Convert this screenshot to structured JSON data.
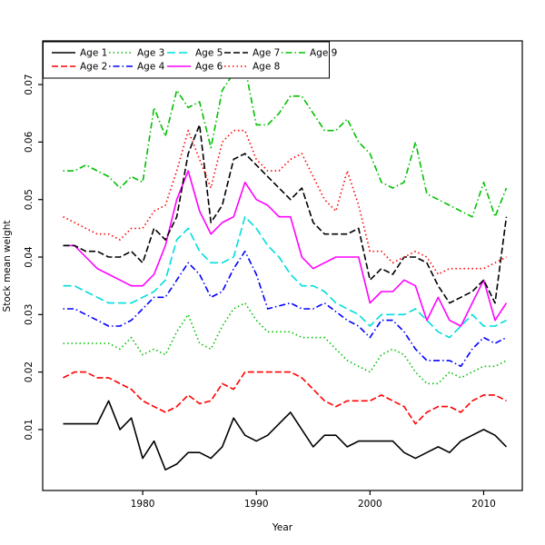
{
  "figure": {
    "title": "",
    "xlabel": "Year",
    "ylabel": "Stock mean weight"
  },
  "chart_data": {
    "type": "line",
    "title": "",
    "xlabel": "Year",
    "ylabel": "Stock mean weight",
    "x": [
      1973,
      1974,
      1975,
      1976,
      1977,
      1978,
      1979,
      1980,
      1981,
      1982,
      1983,
      1984,
      1985,
      1986,
      1987,
      1988,
      1989,
      1990,
      1991,
      1992,
      1993,
      1994,
      1995,
      1996,
      1997,
      1998,
      1999,
      2000,
      2001,
      2002,
      2003,
      2004,
      2005,
      2006,
      2007,
      2008,
      2009,
      2010,
      2011,
      2012
    ],
    "x_ticks": [
      1980,
      1990,
      2000,
      2010
    ],
    "y_ticks": [
      0.01,
      0.02,
      0.03,
      0.04,
      0.05,
      0.06,
      0.07
    ],
    "xlim": [
      1971.2,
      2013.4
    ],
    "ylim": [
      -0.0006,
      0.0776
    ],
    "grid": false,
    "legend_position": "top-left",
    "legend_columns": 5,
    "series": [
      {
        "name": "Age 1",
        "color": "#000000",
        "linestyle": "solid",
        "values": [
          0.011,
          0.011,
          0.011,
          0.011,
          0.015,
          0.01,
          0.012,
          0.005,
          0.008,
          0.003,
          0.004,
          0.006,
          0.006,
          0.005,
          0.007,
          0.012,
          0.009,
          0.008,
          0.009,
          0.011,
          0.013,
          0.01,
          0.007,
          0.009,
          0.009,
          0.007,
          0.008,
          0.008,
          0.008,
          0.008,
          0.006,
          0.005,
          0.006,
          0.007,
          0.006,
          0.008,
          0.009,
          0.01,
          0.009,
          0.007
        ]
      },
      {
        "name": "Age 2",
        "color": "#ff0000",
        "linestyle": "dashed",
        "values": [
          0.019,
          0.02,
          0.02,
          0.019,
          0.019,
          0.018,
          0.017,
          0.015,
          0.014,
          0.013,
          0.014,
          0.016,
          0.0145,
          0.015,
          0.018,
          0.017,
          0.02,
          0.02,
          0.02,
          0.02,
          0.02,
          0.019,
          0.017,
          0.015,
          0.014,
          0.015,
          0.015,
          0.015,
          0.016,
          0.015,
          0.014,
          0.011,
          0.013,
          0.014,
          0.014,
          0.013,
          0.015,
          0.016,
          0.016,
          0.015
        ]
      },
      {
        "name": "Age 3",
        "color": "#00c000",
        "linestyle": "dotted",
        "values": [
          0.025,
          0.025,
          0.025,
          0.025,
          0.025,
          0.024,
          0.026,
          0.023,
          0.024,
          0.023,
          0.027,
          0.03,
          0.025,
          0.024,
          0.028,
          0.031,
          0.032,
          0.029,
          0.027,
          0.027,
          0.027,
          0.026,
          0.026,
          0.026,
          0.024,
          0.022,
          0.021,
          0.02,
          0.023,
          0.024,
          0.023,
          0.02,
          0.018,
          0.018,
          0.02,
          0.019,
          0.02,
          0.021,
          0.021,
          0.022
        ]
      },
      {
        "name": "Age 4",
        "color": "#0000ff",
        "linestyle": "dashdot",
        "values": [
          0.031,
          0.031,
          0.03,
          0.029,
          0.028,
          0.028,
          0.029,
          0.031,
          0.033,
          0.033,
          0.036,
          0.039,
          0.037,
          0.033,
          0.034,
          0.038,
          0.041,
          0.037,
          0.031,
          0.0315,
          0.032,
          0.031,
          0.031,
          0.032,
          0.0305,
          0.029,
          0.028,
          0.026,
          0.029,
          0.029,
          0.027,
          0.024,
          0.022,
          0.022,
          0.022,
          0.021,
          0.024,
          0.026,
          0.025,
          0.026
        ]
      },
      {
        "name": "Age 5",
        "color": "#00dddd",
        "linestyle": "longdash",
        "values": [
          0.035,
          0.035,
          0.034,
          0.033,
          0.032,
          0.032,
          0.032,
          0.033,
          0.034,
          0.036,
          0.043,
          0.045,
          0.041,
          0.039,
          0.039,
          0.04,
          0.047,
          0.045,
          0.042,
          0.04,
          0.037,
          0.035,
          0.035,
          0.034,
          0.032,
          0.031,
          0.03,
          0.028,
          0.03,
          0.03,
          0.03,
          0.031,
          0.029,
          0.027,
          0.026,
          0.028,
          0.03,
          0.028,
          0.028,
          0.029
        ]
      },
      {
        "name": "Age 6",
        "color": "#ff00ff",
        "linestyle": "solid",
        "values": [
          0.042,
          0.042,
          0.04,
          0.038,
          0.037,
          0.036,
          0.035,
          0.035,
          0.037,
          0.042,
          0.05,
          0.055,
          0.048,
          0.044,
          0.046,
          0.047,
          0.053,
          0.05,
          0.049,
          0.047,
          0.047,
          0.04,
          0.038,
          0.039,
          0.04,
          0.04,
          0.04,
          0.032,
          0.034,
          0.034,
          0.036,
          0.035,
          0.029,
          0.033,
          0.029,
          0.028,
          0.032,
          0.036,
          0.029,
          0.032
        ]
      },
      {
        "name": "Age 7",
        "color": "#000000",
        "linestyle": "dashed",
        "values": [
          0.042,
          0.042,
          0.041,
          0.041,
          0.04,
          0.04,
          0.041,
          0.039,
          0.045,
          0.043,
          0.047,
          0.058,
          0.063,
          0.046,
          0.049,
          0.057,
          0.058,
          0.056,
          0.054,
          0.052,
          0.05,
          0.052,
          0.046,
          0.044,
          0.044,
          0.044,
          0.045,
          0.036,
          0.038,
          0.037,
          0.04,
          0.04,
          0.039,
          0.035,
          0.032,
          0.033,
          0.034,
          0.036,
          0.032,
          0.047
        ]
      },
      {
        "name": "Age 8",
        "color": "#ff0000",
        "linestyle": "dotted",
        "values": [
          0.047,
          0.046,
          0.045,
          0.044,
          0.044,
          0.043,
          0.045,
          0.045,
          0.048,
          0.049,
          0.055,
          0.062,
          0.057,
          0.052,
          0.06,
          0.062,
          0.062,
          0.057,
          0.055,
          0.055,
          0.057,
          0.058,
          0.054,
          0.05,
          0.048,
          0.055,
          0.049,
          0.041,
          0.041,
          0.039,
          0.04,
          0.041,
          0.04,
          0.037,
          0.038,
          0.038,
          0.038,
          0.038,
          0.039,
          0.04
        ]
      },
      {
        "name": "Age 9",
        "color": "#00c000",
        "linestyle": "dashdot",
        "values": [
          0.055,
          0.055,
          0.056,
          0.055,
          0.054,
          0.052,
          0.054,
          0.053,
          0.066,
          0.061,
          0.069,
          0.066,
          0.067,
          0.059,
          0.069,
          0.072,
          0.073,
          0.063,
          0.063,
          0.065,
          0.068,
          0.068,
          0.065,
          0.062,
          0.062,
          0.064,
          0.06,
          0.058,
          0.053,
          0.052,
          0.053,
          0.06,
          0.051,
          0.05,
          0.049,
          0.048,
          0.047,
          0.053,
          0.047,
          0.052
        ]
      }
    ]
  }
}
